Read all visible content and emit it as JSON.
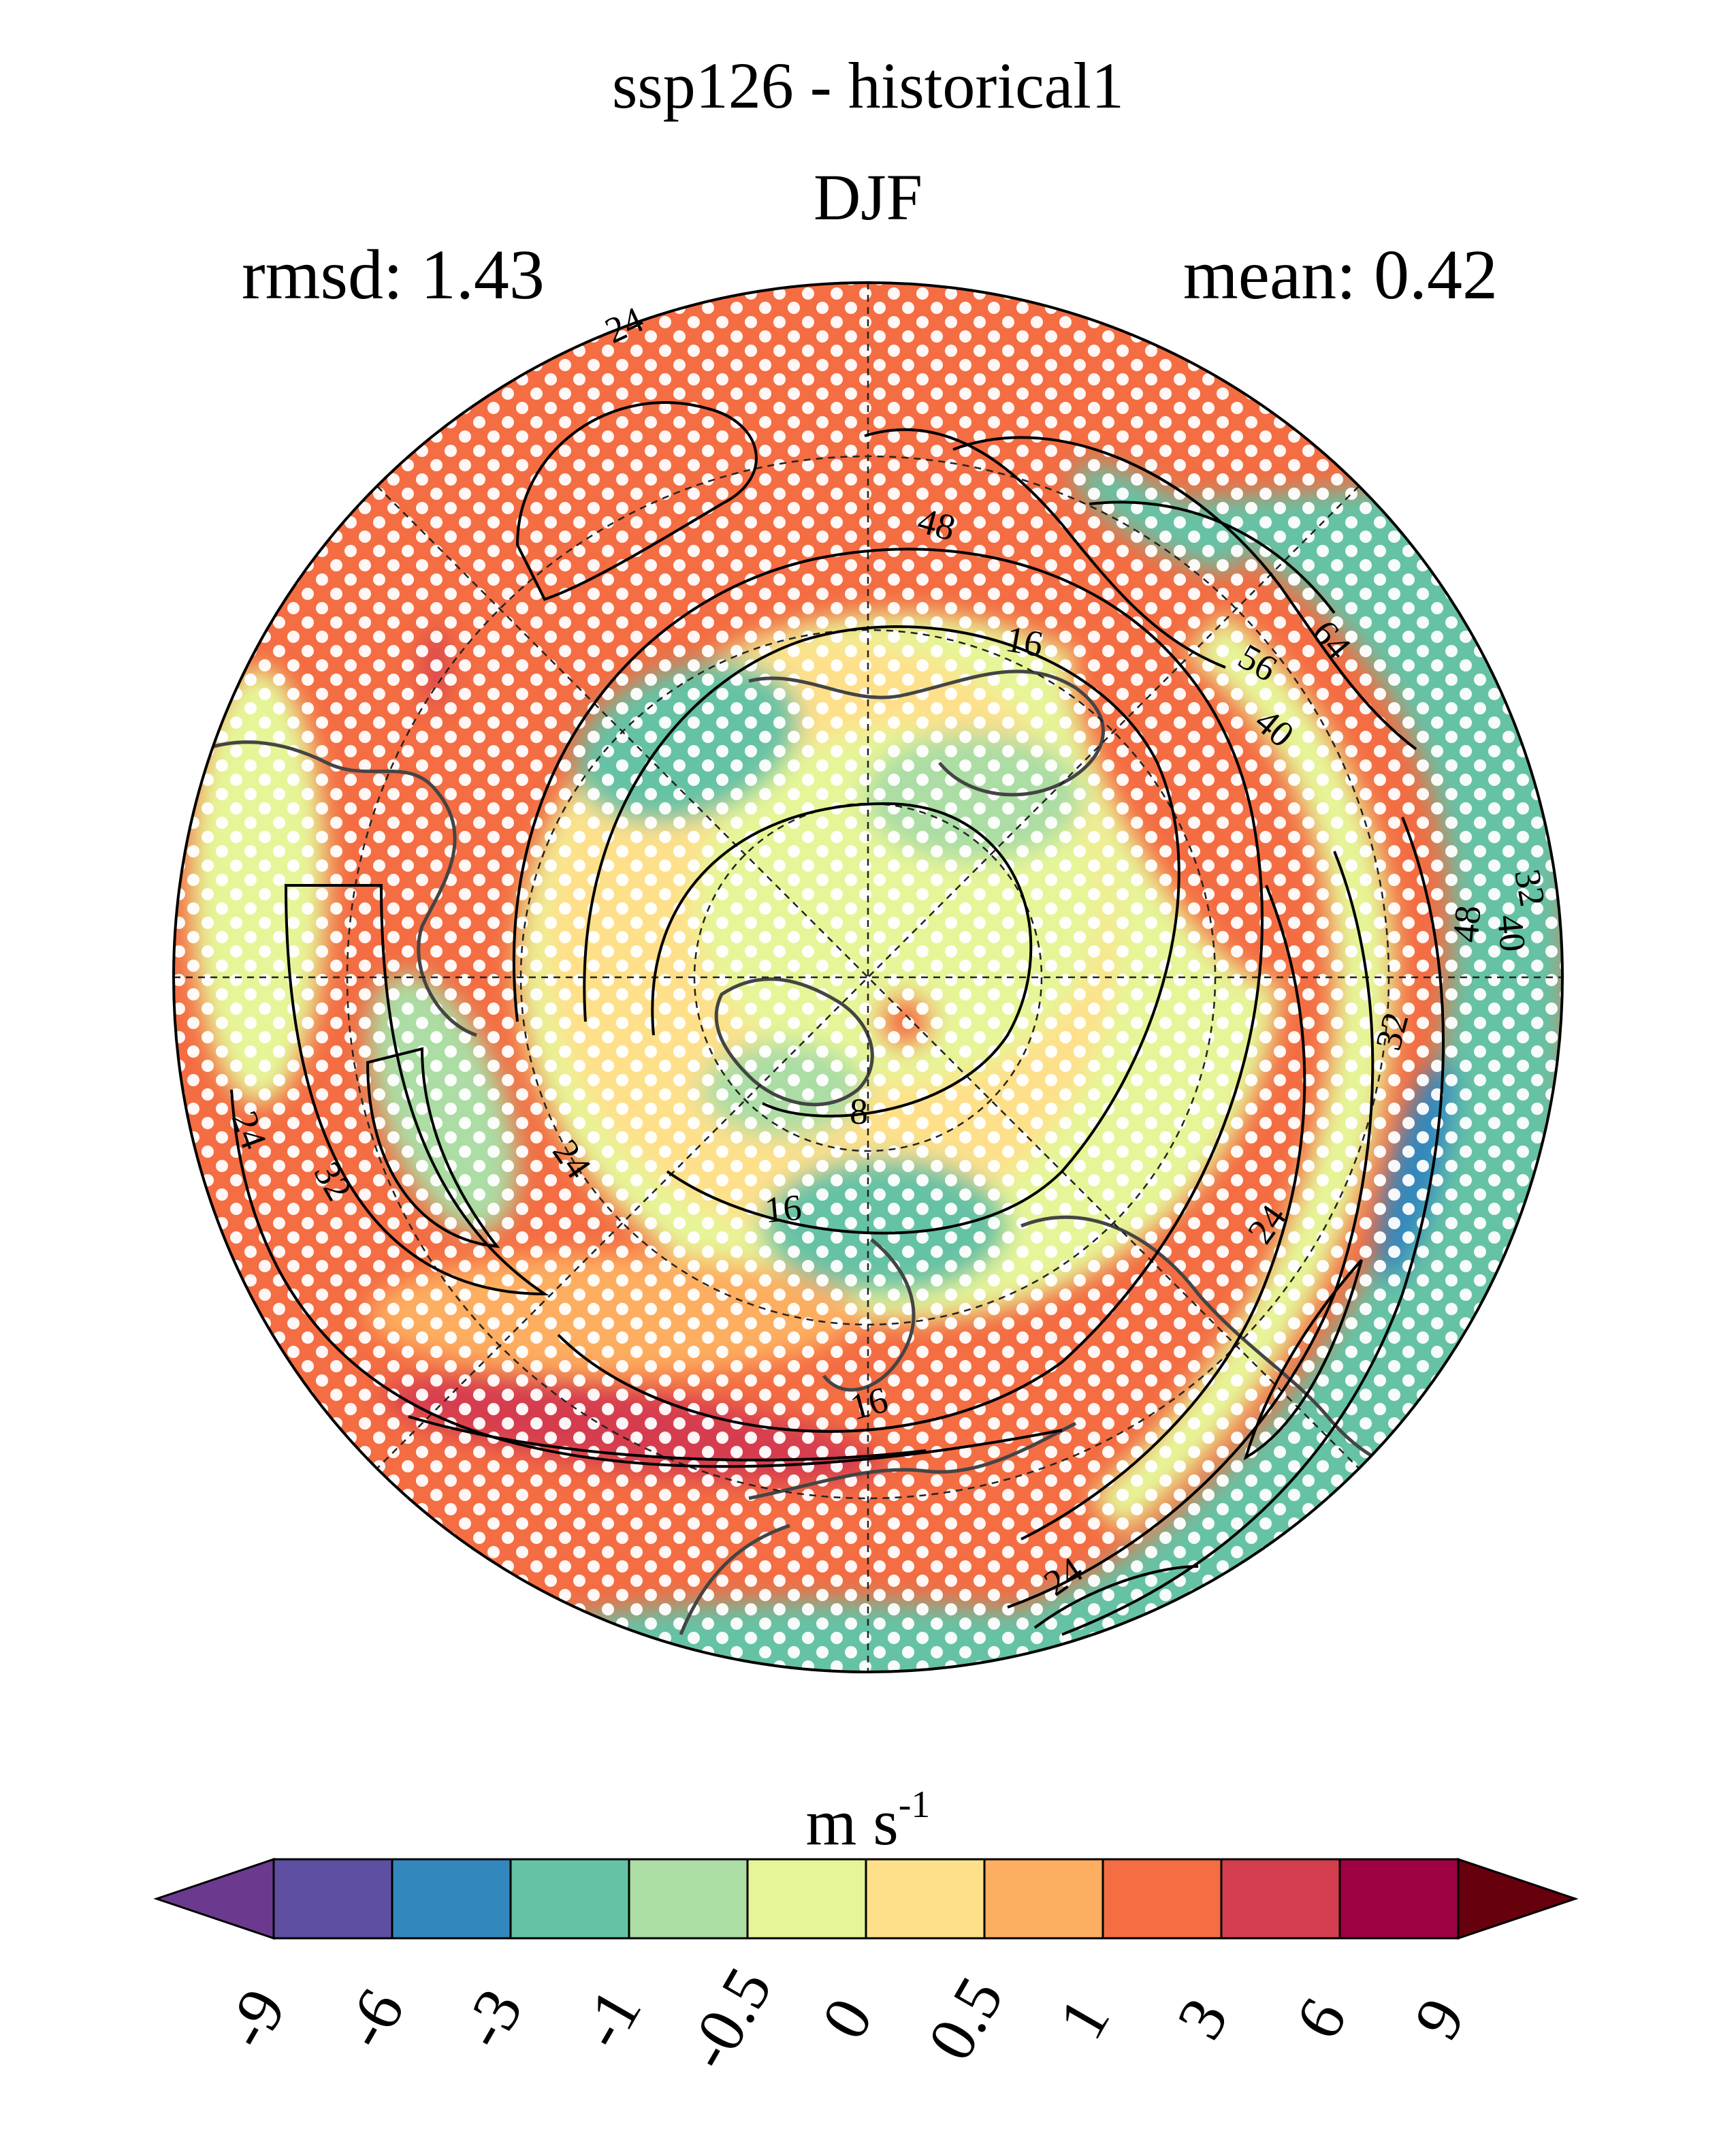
{
  "title": "ssp126 - historical1",
  "season": "DJF",
  "stats": {
    "rmsd_label": "rmsd: 1.43",
    "mean_label": "mean: 0.42"
  },
  "map": {
    "projection": "north-polar-stereographic",
    "contour_labels": [
      "24",
      "48",
      "16",
      "56",
      "64",
      "40",
      "32",
      "40",
      "48",
      "32",
      "8",
      "16",
      "24",
      "24",
      "32",
      "24",
      "16",
      "24",
      "40"
    ],
    "stippling": "white dots",
    "graticule": "dashed"
  },
  "colorbar": {
    "units_main": "m s",
    "units_exp": "-1",
    "ticks": [
      "-9",
      "-6",
      "-3",
      "-1",
      "-0.5",
      "0",
      "0.5",
      "1",
      "3",
      "6",
      "9"
    ],
    "colors": [
      "#5e4fa2",
      "#3288bd",
      "#66c2a5",
      "#abdda4",
      "#e6f598",
      "#fee08b",
      "#fdae61",
      "#f46d43",
      "#d53e4f",
      "#9e0142"
    ],
    "under_color": "#6b3a8f",
    "over_color": "#67000d"
  }
}
